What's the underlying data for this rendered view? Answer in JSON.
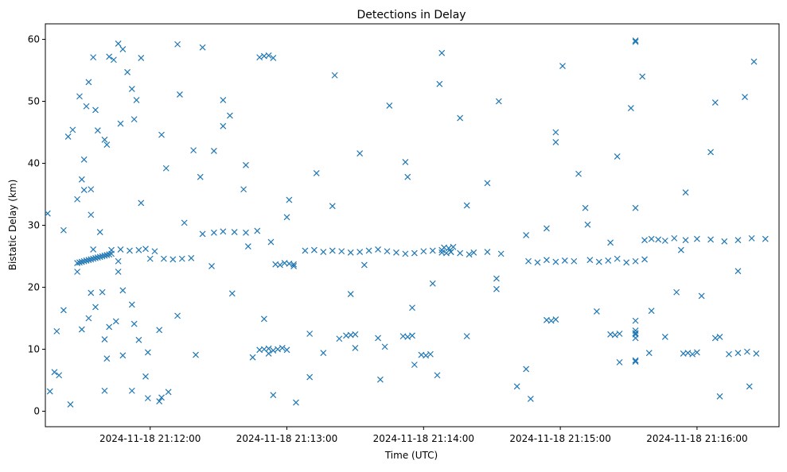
{
  "chart_data": {
    "type": "scatter",
    "title": "Detections in Delay",
    "xlabel": "Time (UTC)",
    "ylabel": "Bistatic Delay (km)",
    "x_axis_type": "datetime",
    "xlim": [
      "2024-11-18 21:11:14",
      "2024-11-18 21:16:36"
    ],
    "ylim": [
      -2.5,
      62.5
    ],
    "x_ticks": [
      "2024-11-18 21:12:00",
      "2024-11-18 21:13:00",
      "2024-11-18 21:14:00",
      "2024-11-18 21:15:00",
      "2024-11-18 21:16:00"
    ],
    "y_ticks": [
      0,
      10,
      20,
      30,
      40,
      50,
      60
    ],
    "grid": false,
    "legend": "none",
    "marker": "x",
    "marker_color": "#1f77b4",
    "series": [
      {
        "x": [
          "2024-11-18 21:11:28",
          "2024-11-18 21:11:29",
          "2024-11-18 21:11:30",
          "2024-11-18 21:11:31",
          "2024-11-18 21:11:32",
          "2024-11-18 21:11:33",
          "2024-11-18 21:11:34",
          "2024-11-18 21:11:35",
          "2024-11-18 21:11:36",
          "2024-11-18 21:11:37",
          "2024-11-18 21:11:38",
          "2024-11-18 21:11:39",
          "2024-11-18 21:11:40",
          "2024-11-18 21:11:41",
          "2024-11-18 21:11:42",
          "2024-11-18 21:11:43",
          "2024-11-18 21:11:28",
          "2024-11-18 21:11:30",
          "2024-11-18 21:11:31",
          "2024-11-18 21:11:32",
          "2024-11-18 21:11:33",
          "2024-11-18 21:11:34",
          "2024-11-18 21:11:35",
          "2024-11-18 21:11:37",
          "2024-11-18 21:11:38",
          "2024-11-18 21:11:40",
          "2024-11-18 21:11:42",
          "2024-11-18 21:11:44",
          "2024-11-18 21:11:46",
          "2024-11-18 21:11:48",
          "2024-11-18 21:11:50",
          "2024-11-18 21:11:52",
          "2024-11-18 21:11:54",
          "2024-11-18 21:11:56",
          "2024-11-18 21:11:33",
          "2024-11-18 21:11:36",
          "2024-11-18 21:11:39",
          "2024-11-18 21:11:42",
          "2024-11-18 21:11:45",
          "2024-11-18 21:11:48",
          "2024-11-18 21:11:52",
          "2024-11-18 21:11:55",
          "2024-11-18 21:11:59",
          "2024-11-18 21:12:04",
          "2024-11-18 21:12:08",
          "2024-11-18 21:11:43",
          "2024-11-18 21:11:47",
          "2024-11-18 21:11:51",
          "2024-11-18 21:11:55",
          "2024-11-18 21:11:58",
          "2024-11-18 21:12:02",
          "2024-11-18 21:12:06",
          "2024-11-18 21:12:10",
          "2024-11-18 21:12:14",
          "2024-11-18 21:12:18",
          "2024-11-18 21:12:23",
          "2024-11-18 21:12:28",
          "2024-11-18 21:12:32",
          "2024-11-18 21:12:37",
          "2024-11-18 21:12:42",
          "2024-11-18 21:12:47",
          "2024-11-18 21:12:48",
          "2024-11-18 21:12:50",
          "2024-11-18 21:12:52",
          "2024-11-18 21:12:54",
          "2024-11-18 21:12:56",
          "2024-11-18 21:12:58",
          "2024-11-18 21:13:00",
          "2024-11-18 21:12:55",
          "2024-11-18 21:12:57",
          "2024-11-18 21:12:59",
          "2024-11-18 21:13:01",
          "2024-11-18 21:13:03",
          "2024-11-18 21:12:48",
          "2024-11-18 21:12:50",
          "2024-11-18 21:12:52",
          "2024-11-18 21:12:54",
          "2024-11-18 21:13:08",
          "2024-11-18 21:13:12",
          "2024-11-18 21:13:16",
          "2024-11-18 21:13:20",
          "2024-11-18 21:13:24",
          "2024-11-18 21:13:28",
          "2024-11-18 21:13:32",
          "2024-11-18 21:13:36",
          "2024-11-18 21:13:40",
          "2024-11-18 21:13:44",
          "2024-11-18 21:13:48",
          "2024-11-18 21:13:52",
          "2024-11-18 21:13:56",
          "2024-11-18 21:14:00",
          "2024-11-18 21:14:04",
          "2024-11-18 21:14:08",
          "2024-11-18 21:14:12",
          "2024-11-18 21:14:16",
          "2024-11-18 21:14:22",
          "2024-11-18 21:14:28",
          "2024-11-18 21:14:34",
          "2024-11-18 21:13:26",
          "2024-11-18 21:13:28",
          "2024-11-18 21:13:30",
          "2024-11-18 21:13:59",
          "2024-11-18 21:14:01",
          "2024-11-18 21:14:03",
          "2024-11-18 21:14:09",
          "2024-11-18 21:14:11",
          "2024-11-18 21:14:13",
          "2024-11-18 21:14:08",
          "2024-11-18 21:14:10",
          "2024-11-18 21:14:12",
          "2024-11-18 21:13:51",
          "2024-11-18 21:13:53",
          "2024-11-18 21:13:55",
          "2024-11-18 21:14:46",
          "2024-11-18 21:14:50",
          "2024-11-18 21:14:54",
          "2024-11-18 21:14:58",
          "2024-11-18 21:15:02",
          "2024-11-18 21:15:06",
          "2024-11-18 21:14:54",
          "2024-11-18 21:14:56",
          "2024-11-18 21:14:58",
          "2024-11-18 21:15:13",
          "2024-11-18 21:15:17",
          "2024-11-18 21:15:21",
          "2024-11-18 21:15:25",
          "2024-11-18 21:15:29",
          "2024-11-18 21:15:33",
          "2024-11-18 21:15:37",
          "2024-11-18 21:15:22",
          "2024-11-18 21:15:24",
          "2024-11-18 21:15:26",
          "2024-11-18 21:15:33",
          "2024-11-18 21:15:33",
          "2024-11-18 21:15:33",
          "2024-11-18 21:15:33",
          "2024-11-18 21:15:33",
          "2024-11-18 21:15:33",
          "2024-11-18 21:15:33",
          "2024-11-18 21:15:33",
          "2024-11-18 21:15:33",
          "2024-11-18 21:15:33",
          "2024-11-18 21:15:37",
          "2024-11-18 21:15:40",
          "2024-11-18 21:15:43",
          "2024-11-18 21:15:46",
          "2024-11-18 21:15:50",
          "2024-11-18 21:15:55",
          "2024-11-18 21:16:00",
          "2024-11-18 21:16:06",
          "2024-11-18 21:16:12",
          "2024-11-18 21:16:18",
          "2024-11-18 21:16:24",
          "2024-11-18 21:16:30",
          "2024-11-18 21:15:54",
          "2024-11-18 21:15:56",
          "2024-11-18 21:15:58",
          "2024-11-18 21:16:00",
          "2024-11-18 21:16:08",
          "2024-11-18 21:16:10",
          "2024-11-18 21:16:14",
          "2024-11-18 21:16:18",
          "2024-11-18 21:16:22",
          "2024-11-18 21:16:26"
        ],
        "y": [
          23.9,
          24.0,
          24.1,
          24.2,
          24.3,
          24.4,
          24.5,
          24.6,
          24.7,
          24.8,
          24.9,
          25.0,
          25.1,
          25.2,
          25.3,
          25.4,
          34.2,
          37.4,
          40.6,
          49.2,
          53.1,
          35.8,
          57.1,
          45.3,
          28.9,
          43.8,
          57.2,
          56.7,
          59.3,
          58.4,
          54.7,
          52.0,
          50.2,
          57.0,
          15.0,
          16.8,
          19.2,
          13.6,
          14.5,
          9.0,
          3.3,
          11.5,
          2.1,
          1.6,
          3.1,
          26.0,
          26.1,
          25.9,
          26.0,
          26.2,
          25.8,
          24.6,
          24.5,
          24.6,
          24.7,
          28.6,
          28.8,
          29.0,
          28.9,
          28.8,
          29.1,
          9.9,
          10.0,
          10.1,
          9.8,
          10.0,
          10.2,
          9.9,
          23.7,
          23.6,
          23.9,
          23.8,
          23.7,
          57.1,
          57.3,
          57.4,
          57.0,
          25.9,
          26.0,
          25.7,
          25.9,
          25.8,
          25.6,
          25.7,
          25.9,
          26.1,
          25.8,
          25.6,
          25.4,
          25.5,
          25.8,
          25.9,
          26.0,
          25.7,
          25.5,
          25.6,
          25.7,
          25.4,
          12.2,
          12.3,
          12.4,
          9.1,
          9.0,
          9.2,
          26.4,
          26.3,
          26.5,
          25.6,
          25.5,
          25.7,
          12.1,
          12.0,
          12.2,
          24.2,
          24.0,
          24.4,
          24.1,
          24.3,
          24.2,
          14.7,
          14.6,
          14.8,
          24.4,
          24.1,
          24.3,
          24.6,
          24.0,
          24.2,
          24.5,
          12.4,
          12.3,
          12.5,
          59.6,
          59.8,
          32.8,
          12.4,
          11.8,
          8.0,
          8.2,
          14.6,
          13.0,
          12.6,
          27.6,
          27.8,
          27.7,
          27.5,
          27.9,
          27.6,
          27.8,
          27.7,
          27.4,
          27.6,
          27.9,
          27.8,
          9.3,
          9.4,
          9.2,
          9.5,
          11.8,
          12.0,
          9.2,
          9.4,
          9.6,
          9.3
        ]
      },
      {
        "x": [
          "2024-11-18 21:11:15",
          "2024-11-18 21:11:18",
          "2024-11-18 21:11:22",
          "2024-11-18 21:11:26",
          "2024-11-18 21:11:31",
          "2024-11-18 21:11:36",
          "2024-11-18 21:11:41",
          "2024-11-18 21:11:47",
          "2024-11-18 21:11:53",
          "2024-11-18 21:11:59",
          "2024-11-18 21:12:05",
          "2024-11-18 21:12:12",
          "2024-11-18 21:12:19",
          "2024-11-18 21:12:27",
          "2024-11-18 21:12:35",
          "2024-11-18 21:12:43",
          "2024-11-18 21:12:52",
          "2024-11-18 21:13:01",
          "2024-11-18 21:13:10",
          "2024-11-18 21:13:20",
          "2024-11-18 21:13:30",
          "2024-11-18 21:13:41",
          "2024-11-18 21:13:52",
          "2024-11-18 21:14:04",
          "2024-11-18 21:14:16",
          "2024-11-18 21:14:28",
          "2024-11-18 21:14:41",
          "2024-11-18 21:14:54",
          "2024-11-18 21:15:08",
          "2024-11-18 21:15:22",
          "2024-11-18 21:15:36",
          "2024-11-18 21:15:51",
          "2024-11-18 21:16:06",
          "2024-11-18 21:16:21",
          "2024-11-18 21:11:16",
          "2024-11-18 21:11:20",
          "2024-11-18 21:11:25",
          "2024-11-18 21:11:30",
          "2024-11-18 21:11:35",
          "2024-11-18 21:11:40",
          "2024-11-18 21:11:46",
          "2024-11-18 21:11:52",
          "2024-11-18 21:11:58",
          "2024-11-18 21:12:05",
          "2024-11-18 21:12:12",
          "2024-11-18 21:12:20",
          "2024-11-18 21:12:28",
          "2024-11-18 21:12:36",
          "2024-11-18 21:12:45",
          "2024-11-18 21:12:54",
          "2024-11-18 21:13:03",
          "2024-11-18 21:13:13",
          "2024-11-18 21:13:23",
          "2024-11-18 21:13:34",
          "2024-11-18 21:13:45",
          "2024-11-18 21:13:56",
          "2024-11-18 21:14:08",
          "2024-11-18 21:14:20",
          "2024-11-18 21:14:32",
          "2024-11-18 21:14:45",
          "2024-11-18 21:14:58",
          "2024-11-18 21:15:11",
          "2024-11-18 21:15:25",
          "2024-11-18 21:15:39",
          "2024-11-18 21:15:53",
          "2024-11-18 21:16:08",
          "2024-11-18 21:16:23",
          "2024-11-18 21:11:19",
          "2024-11-18 21:11:24",
          "2024-11-18 21:11:29",
          "2024-11-18 21:11:34",
          "2024-11-18 21:11:40",
          "2024-11-18 21:11:46",
          "2024-11-18 21:11:53",
          "2024-11-18 21:12:00",
          "2024-11-18 21:12:07",
          "2024-11-18 21:12:15",
          "2024-11-18 21:12:23",
          "2024-11-18 21:12:32",
          "2024-11-18 21:12:41",
          "2024-11-18 21:12:50",
          "2024-11-18 21:13:00",
          "2024-11-18 21:13:10",
          "2024-11-18 21:13:21",
          "2024-11-18 21:13:32",
          "2024-11-18 21:13:43",
          "2024-11-18 21:13:55",
          "2024-11-18 21:14:07",
          "2024-11-18 21:14:19",
          "2024-11-18 21:14:32",
          "2024-11-18 21:14:45",
          "2024-11-18 21:14:58",
          "2024-11-18 21:15:12",
          "2024-11-18 21:15:26",
          "2024-11-18 21:15:40",
          "2024-11-18 21:15:55",
          "2024-11-18 21:16:10",
          "2024-11-18 21:16:25",
          "2024-11-18 21:11:22",
          "2024-11-18 21:11:28",
          "2024-11-18 21:11:34",
          "2024-11-18 21:11:41",
          "2024-11-18 21:11:48",
          "2024-11-18 21:11:56",
          "2024-11-18 21:12:04",
          "2024-11-18 21:12:13",
          "2024-11-18 21:12:22",
          "2024-11-18 21:12:32",
          "2024-11-18 21:12:42",
          "2024-11-18 21:12:53",
          "2024-11-18 21:13:04",
          "2024-11-18 21:13:16",
          "2024-11-18 21:13:28",
          "2024-11-18 21:13:40",
          "2024-11-18 21:13:53",
          "2024-11-18 21:14:06",
          "2024-11-18 21:14:19",
          "2024-11-18 21:14:33",
          "2024-11-18 21:14:47",
          "2024-11-18 21:15:01",
          "2024-11-18 21:15:16",
          "2024-11-18 21:15:31",
          "2024-11-18 21:15:46",
          "2024-11-18 21:16:02",
          "2024-11-18 21:16:18"
        ],
        "y": [
          31.9,
          6.3,
          16.3,
          45.4,
          35.7,
          48.6,
          8.5,
          46.4,
          14.1,
          9.5,
          44.6,
          59.2,
          42.1,
          23.4,
          47.7,
          26.6,
          9.3,
          34.1,
          12.5,
          33.1,
          10.2,
          5.1,
          40.2,
          20.6,
          47.3,
          36.8,
          4.0,
          29.5,
          38.3,
          27.2,
          54.0,
          19.2,
          41.8,
          50.7,
          3.2,
          5.8,
          1.1,
          13.2,
          26.1,
          3.3,
          22.5,
          17.2,
          5.6,
          2.2,
          15.4,
          9.1,
          42.0,
          19.0,
          8.7,
          2.6,
          23.4,
          38.4,
          11.7,
          23.6,
          49.3,
          7.5,
          57.8,
          25.3,
          19.7,
          6.8,
          43.4,
          32.8,
          41.1,
          9.4,
          26.0,
          49.8,
          4.0,
          12.9,
          44.3,
          50.8,
          19.1,
          11.6,
          24.2,
          47.1,
          24.6,
          39.2,
          30.4,
          58.7,
          46.0,
          35.8,
          14.9,
          31.3,
          5.5,
          54.2,
          41.6,
          10.4,
          16.7,
          52.8,
          33.2,
          21.4,
          28.4,
          45.0,
          30.1,
          7.9,
          16.2,
          35.3,
          2.4,
          56.4,
          29.2,
          22.5,
          31.7,
          43.0,
          19.5,
          33.6,
          13.1,
          51.1,
          37.8,
          50.2,
          39.7,
          27.3,
          1.4,
          9.4,
          18.9,
          11.8,
          37.8,
          5.8,
          12.1,
          50.0,
          2.0,
          55.7,
          16.1,
          48.9,
          12.0,
          18.6,
          22.6
        ]
      }
    ]
  }
}
